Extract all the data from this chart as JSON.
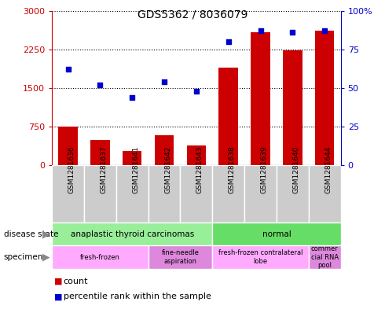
{
  "title": "GDS5362 / 8036079",
  "samples": [
    "GSM1281636",
    "GSM1281637",
    "GSM1281641",
    "GSM1281642",
    "GSM1281643",
    "GSM1281638",
    "GSM1281639",
    "GSM1281640",
    "GSM1281644"
  ],
  "counts": [
    750,
    490,
    280,
    590,
    380,
    1900,
    2580,
    2240,
    2620
  ],
  "percentiles": [
    62,
    52,
    44,
    54,
    48,
    80,
    87,
    86,
    87
  ],
  "ylim_left": [
    0,
    3000
  ],
  "ylim_right": [
    0,
    100
  ],
  "yticks_left": [
    0,
    750,
    1500,
    2250,
    3000
  ],
  "yticks_right": [
    0,
    25,
    50,
    75,
    100
  ],
  "bar_color": "#cc0000",
  "dot_color": "#0000cc",
  "disease_state": [
    {
      "label": "anaplastic thyroid carcinomas",
      "start": 0,
      "end": 5,
      "color": "#99ee99"
    },
    {
      "label": "normal",
      "start": 5,
      "end": 9,
      "color": "#66dd66"
    }
  ],
  "specimen": [
    {
      "label": "fresh-frozen",
      "start": 0,
      "end": 3,
      "color": "#ffaaff"
    },
    {
      "label": "fine-needle\naspiration",
      "start": 3,
      "end": 5,
      "color": "#dd88dd"
    },
    {
      "label": "fresh-frozen contralateral\nlobe",
      "start": 5,
      "end": 8,
      "color": "#ffaaff"
    },
    {
      "label": "commer\ncial RNA\npool",
      "start": 8,
      "end": 9,
      "color": "#dd88dd"
    }
  ],
  "bg_color": "#ffffff",
  "tick_label_color_left": "#cc0000",
  "tick_label_color_right": "#0000cc",
  "xtick_bg": "#cccccc",
  "chart_bg": "#ffffff"
}
